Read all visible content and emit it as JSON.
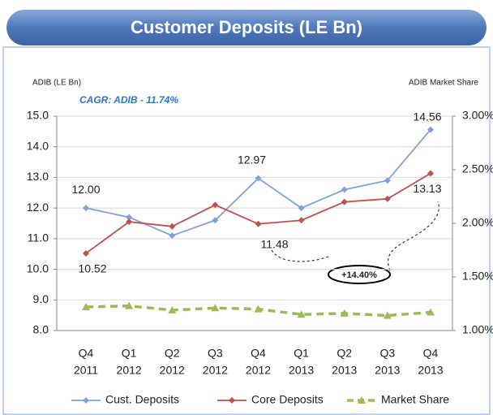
{
  "chart_data": {
    "type": "line",
    "title": "Customer Deposits (LE Bn)",
    "subtitle": "CAGR: ADIB - 11.74%",
    "y_label": "ADIB (LE Bn)",
    "y2_label": "ADIB Market Share",
    "annotation": "+14.40%",
    "categories": [
      [
        "Q4",
        "2011"
      ],
      [
        "Q1",
        "2012"
      ],
      [
        "Q2",
        "2012"
      ],
      [
        "Q3",
        "2012"
      ],
      [
        "Q4",
        "2012"
      ],
      [
        "Q1",
        "2013"
      ],
      [
        "Q2",
        "2013"
      ],
      [
        "Q3",
        "2013"
      ],
      [
        "Q4",
        "2013"
      ]
    ],
    "series": [
      {
        "name": "Cust. Deposits",
        "color": "#7fa3d8",
        "marker": "diamond",
        "values": [
          12.0,
          11.7,
          11.1,
          11.6,
          12.97,
          12.0,
          12.6,
          12.9,
          14.56
        ],
        "value_labels": [
          "12.00",
          null,
          null,
          null,
          "12.97",
          null,
          null,
          null,
          "14.56"
        ]
      },
      {
        "name": "Core Deposits",
        "color": "#c0504d",
        "marker": "diamond",
        "values": [
          10.52,
          11.55,
          11.4,
          12.1,
          11.48,
          11.6,
          12.2,
          12.3,
          13.13
        ],
        "value_labels": [
          "10.52",
          null,
          null,
          null,
          "11.48",
          null,
          null,
          null,
          "13.13"
        ]
      },
      {
        "name": "Market Share",
        "color": "#9bbb59",
        "marker": "triangle",
        "dashed": true,
        "axis": "y2",
        "values": [
          1.22,
          1.23,
          1.19,
          1.21,
          1.2,
          1.15,
          1.16,
          1.14,
          1.17
        ]
      }
    ],
    "ylim": [
      8,
      15
    ],
    "yticks": [
      {
        "value": 8,
        "label": "8.0"
      },
      {
        "value": 9,
        "label": "9.0"
      },
      {
        "value": 10,
        "label": "10.0"
      },
      {
        "value": 11,
        "label": "11.0"
      },
      {
        "value": 12,
        "label": "12.0"
      },
      {
        "value": 13,
        "label": "13.0"
      },
      {
        "value": 14,
        "label": "14.0"
      },
      {
        "value": 15,
        "label": "15.0"
      }
    ],
    "y2lim": [
      1,
      3
    ],
    "y2ticks": [
      {
        "value": 1,
        "label": "1.00%"
      },
      {
        "value": 1.5,
        "label": "1.50%"
      },
      {
        "value": 2,
        "label": "2.00%"
      },
      {
        "value": 2.5,
        "label": "2.50%"
      },
      {
        "value": 3,
        "label": "3.00%"
      }
    ],
    "grid": true,
    "legend": "bottom"
  }
}
